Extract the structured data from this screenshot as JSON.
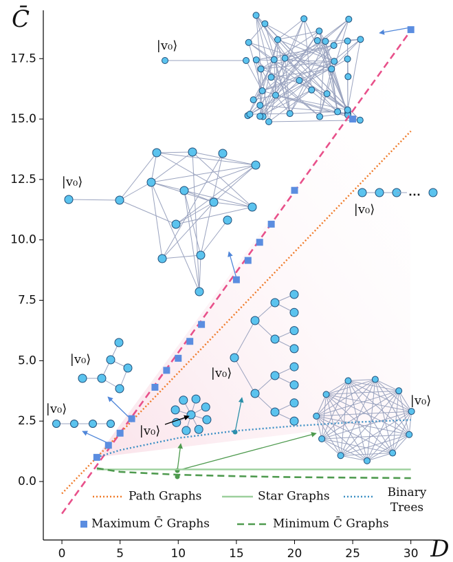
{
  "chart_data": {
    "type": "line",
    "xlabel": "D",
    "ylabel": "C̄",
    "xlim": [
      -1.6,
      32.5
    ],
    "ylim": [
      -2.42,
      19.5
    ],
    "xticks": [
      0,
      5,
      10,
      15,
      20,
      25,
      30
    ],
    "yticks": [
      {
        "value": 0,
        "label": "0.0"
      },
      2.5,
      {
        "value": 5,
        "label": "5.0"
      },
      7.5,
      {
        "value": 10,
        "label": "10.0"
      },
      12.5,
      {
        "value": 15,
        "label": "15.0"
      },
      17.5
    ],
    "legend": "lower center",
    "series": [
      {
        "name": "Path Graphs",
        "color": "#f07a28",
        "style": "dotted",
        "x": [
          0,
          30
        ],
        "values": [
          -0.5,
          14.5
        ]
      },
      {
        "name": "Star Graphs",
        "color": "#9ccf9c",
        "style": "solid",
        "x": [
          3,
          30
        ],
        "values": [
          0.5,
          0.5
        ]
      },
      {
        "name": "Binary Trees",
        "color": "#3b8fc4",
        "style": "dotted",
        "x": [
          3,
          5,
          10,
          15,
          20,
          25,
          30
        ],
        "values": [
          1.0,
          1.3,
          1.8,
          2.1,
          2.3,
          2.45,
          2.55
        ]
      },
      {
        "name": "Maximum C̄ Graphs",
        "color": "#5b8de0",
        "style": "markers",
        "x": [
          3,
          4,
          5,
          6,
          8,
          9,
          10,
          11,
          12,
          15,
          16,
          17,
          18,
          20,
          25,
          30
        ],
        "values": [
          1.0,
          1.5,
          2.0,
          2.6,
          3.9,
          4.6,
          5.1,
          5.8,
          6.5,
          8.35,
          9.15,
          9.9,
          10.65,
          12.05,
          15.0,
          18.7
        ]
      },
      {
        "name": "Minimum C̄ Graphs",
        "color": "#4e9a4e",
        "style": "dashed",
        "x": [
          3,
          5,
          10,
          15,
          20,
          25,
          30
        ],
        "values": [
          0.55,
          0.4,
          0.28,
          0.22,
          0.18,
          0.16,
          0.14
        ]
      }
    ],
    "fit_line": {
      "color": "#e8508a",
      "style": "dashed",
      "x": [
        0,
        30
      ],
      "values": [
        -1.33,
        18.67
      ]
    },
    "annotations": [
      "|v₀⟩",
      "|v₀⟩",
      "|v₀⟩",
      "|v₀⟩",
      "|v₀⟩",
      "|v₀⟩",
      "|v₀⟩",
      "|v₀⟩",
      "⋯"
    ]
  }
}
